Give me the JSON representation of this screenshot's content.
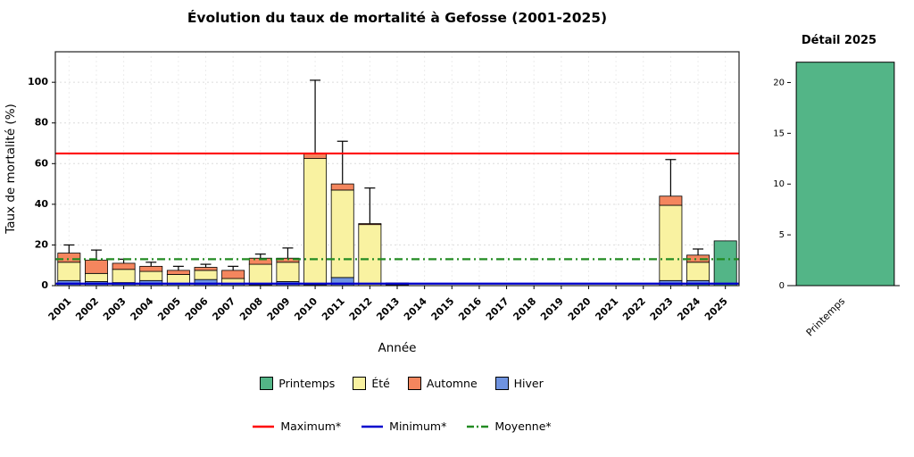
{
  "chart_data": [
    {
      "id": "main",
      "type": "bar",
      "stacked": true,
      "title": "Évolution du taux de mortalité à Gefosse (2001-2025)",
      "xlabel": "Année",
      "ylabel": "Taux de mortalité (%)",
      "ylim": [
        0,
        115
      ],
      "yticks": [
        0,
        20,
        40,
        60,
        80,
        100
      ],
      "grid": "dotted",
      "legend_position": "bottom",
      "categories": [
        "2001",
        "2002",
        "2003",
        "2004",
        "2005",
        "2006",
        "2007",
        "2008",
        "2009",
        "2010",
        "2011",
        "2012",
        "2013",
        "2014",
        "2015",
        "2016",
        "2017",
        "2018",
        "2019",
        "2020",
        "2021",
        "2022",
        "2023",
        "2024",
        "2025"
      ],
      "series": [
        {
          "name": "Printemps",
          "color": "#53b587",
          "values": [
            0,
            0,
            0,
            0,
            0,
            0,
            0,
            0,
            0,
            0,
            0,
            0,
            0,
            0,
            0,
            0,
            0,
            0,
            0,
            0,
            0,
            0,
            0,
            1,
            22
          ]
        },
        {
          "name": "Été",
          "color": "#f9f2a1",
          "values": [
            9,
            4,
            6.5,
            4.5,
            4.5,
            4.5,
            2.5,
            10,
            9.5,
            62,
            43,
            30,
            0.4,
            0,
            0,
            0,
            0,
            0,
            0,
            0,
            0,
            0,
            37,
            9,
            0
          ]
        },
        {
          "name": "Automne",
          "color": "#f4865e",
          "values": [
            4.5,
            6.5,
            3,
            2.5,
            2,
            1.5,
            4,
            3,
            2,
            2.5,
            3,
            0.5,
            0.6,
            0,
            0,
            0,
            0,
            0,
            0,
            0,
            0,
            0,
            4.5,
            3.5,
            0
          ]
        },
        {
          "name": "Hiver",
          "color": "#6f93e0",
          "values": [
            2.5,
            2,
            1.5,
            2.5,
            1,
            3,
            1,
            0.5,
            2,
            0.5,
            4,
            0,
            0.3,
            0,
            0,
            0,
            0,
            0,
            0,
            0,
            0,
            0,
            2.5,
            1.5,
            0
          ]
        }
      ],
      "stack_order_bottom_to_top": [
        "Printemps",
        "Hiver",
        "Été",
        "Automne"
      ],
      "error_bars_upper": [
        20,
        17.5,
        13,
        11.5,
        9.5,
        10.5,
        9.5,
        15.5,
        18.5,
        101,
        71,
        48,
        null,
        null,
        null,
        null,
        null,
        null,
        null,
        null,
        null,
        null,
        62,
        18,
        null
      ],
      "reference_lines": [
        {
          "name": "Maximum*",
          "value": 65,
          "color": "#ff0000",
          "dash": "solid"
        },
        {
          "name": "Minimum*",
          "value": 1,
          "color": "#0000cd",
          "dash": "solid"
        },
        {
          "name": "Moyenne*",
          "value": 13,
          "color": "#228b22",
          "dash": "dashdot"
        }
      ]
    },
    {
      "id": "detail",
      "type": "bar",
      "title": "Détail 2025",
      "categories": [
        "Printemps"
      ],
      "values": [
        22
      ],
      "color": "#53b587",
      "ylim": [
        0,
        22.5
      ],
      "yticks": [
        0,
        5,
        10,
        15,
        20
      ]
    }
  ]
}
